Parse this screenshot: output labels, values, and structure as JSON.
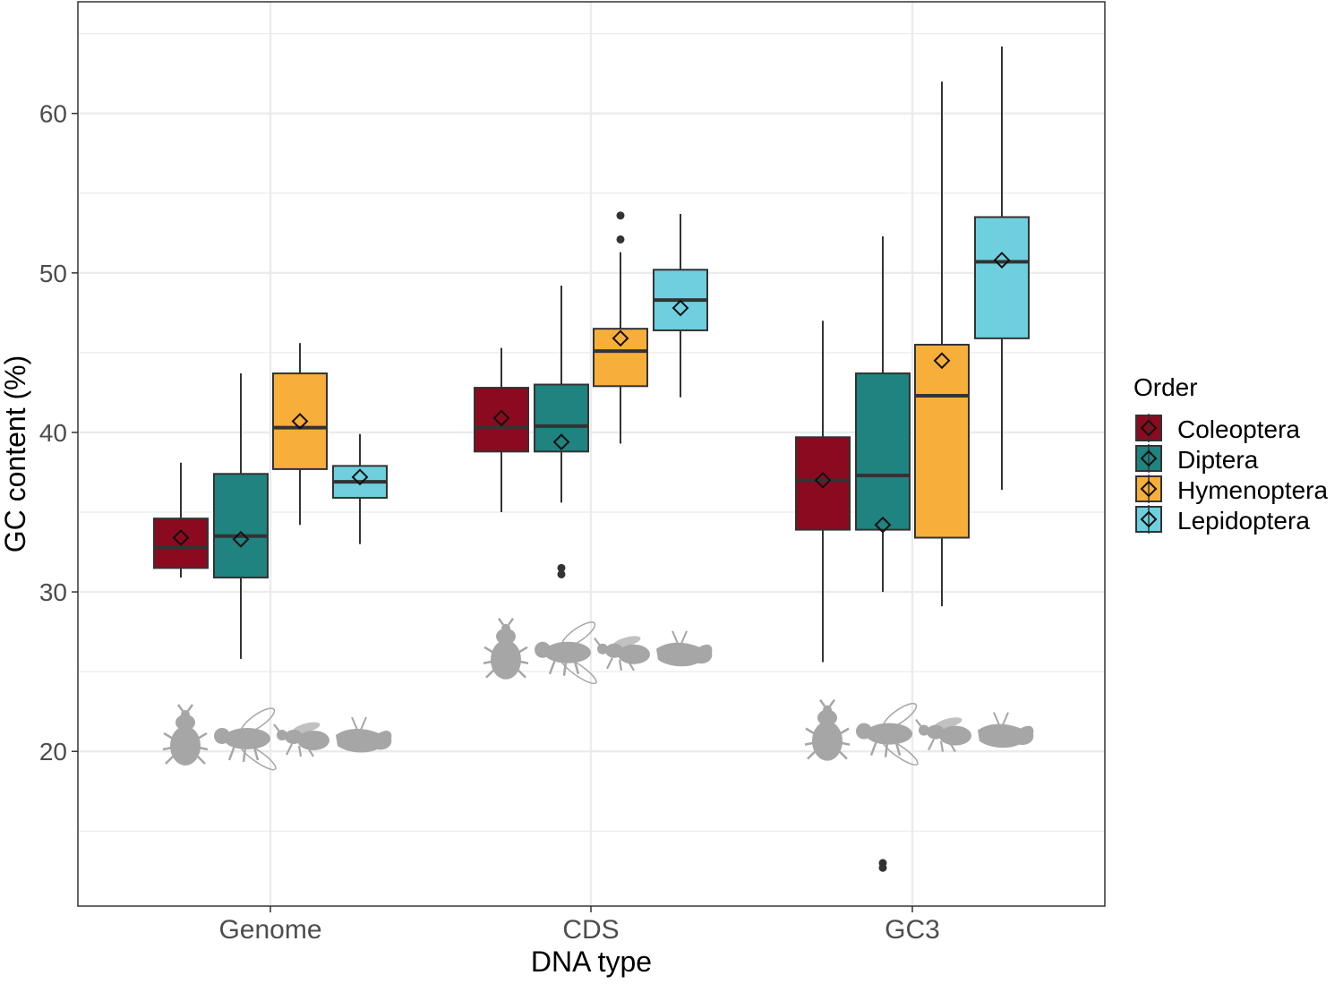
{
  "chart_data": {
    "type": "boxplot",
    "xlabel": "DNA type",
    "ylabel": "GC content (%)",
    "categories": [
      "Genome",
      "CDS",
      "GC3"
    ],
    "ylim": [
      10.3,
      67
    ],
    "yticks": [
      20,
      30,
      40,
      50,
      60
    ],
    "grid": true,
    "legend": {
      "title": "Order",
      "position": "right"
    },
    "colors": {
      "Coleoptera": "#8B0A1F",
      "Diptera": "#1F8380",
      "Hymenoptera": "#F8AE3A",
      "Lepidoptera": "#6ED0DE",
      "box_outline": "#333333",
      "silhouette": "#A6A6A6",
      "grid": "#EBEBEB"
    },
    "series": [
      {
        "name": "Coleoptera",
        "boxes": [
          {
            "category": "Genome",
            "whisker_low": 30.9,
            "q1": 31.5,
            "median": 32.8,
            "q3": 34.6,
            "whisker_high": 38.1,
            "mean": 33.4,
            "outliers": []
          },
          {
            "category": "CDS",
            "whisker_low": 35.0,
            "q1": 38.8,
            "median": 40.3,
            "q3": 42.8,
            "whisker_high": 45.3,
            "mean": 40.9,
            "outliers": []
          },
          {
            "category": "GC3",
            "whisker_low": 25.6,
            "q1": 33.9,
            "median": 37.0,
            "q3": 39.7,
            "whisker_high": 47.0,
            "mean": 37.0,
            "outliers": []
          }
        ]
      },
      {
        "name": "Diptera",
        "boxes": [
          {
            "category": "Genome",
            "whisker_low": 25.8,
            "q1": 30.9,
            "median": 33.5,
            "q3": 37.4,
            "whisker_high": 43.7,
            "mean": 33.3,
            "outliers": []
          },
          {
            "category": "CDS",
            "whisker_low": 35.6,
            "q1": 38.8,
            "median": 40.4,
            "q3": 43.0,
            "whisker_high": 49.2,
            "mean": 39.4,
            "outliers": [
              31.5,
              31.1
            ]
          },
          {
            "category": "GC3",
            "whisker_low": 30.0,
            "q1": 33.9,
            "median": 37.3,
            "q3": 43.7,
            "whisker_high": 52.3,
            "mean": 34.2,
            "outliers": [
              13.0,
              12.7
            ]
          }
        ]
      },
      {
        "name": "Hymenoptera",
        "boxes": [
          {
            "category": "Genome",
            "whisker_low": 34.2,
            "q1": 37.7,
            "median": 40.3,
            "q3": 43.7,
            "whisker_high": 45.6,
            "mean": 40.7,
            "outliers": []
          },
          {
            "category": "CDS",
            "whisker_low": 39.3,
            "q1": 42.9,
            "median": 45.1,
            "q3": 46.5,
            "whisker_high": 51.3,
            "mean": 45.9,
            "outliers": [
              52.1,
              53.6
            ]
          },
          {
            "category": "GC3",
            "whisker_low": 29.1,
            "q1": 33.4,
            "median": 42.3,
            "q3": 45.5,
            "whisker_high": 62.0,
            "mean": 44.5,
            "outliers": []
          }
        ]
      },
      {
        "name": "Lepidoptera",
        "boxes": [
          {
            "category": "Genome",
            "whisker_low": 33.0,
            "q1": 35.9,
            "median": 36.9,
            "q3": 37.9,
            "whisker_high": 39.9,
            "mean": 37.2,
            "outliers": []
          },
          {
            "category": "CDS",
            "whisker_low": 42.2,
            "q1": 46.4,
            "median": 48.3,
            "q3": 50.2,
            "whisker_high": 53.7,
            "mean": 47.8,
            "outliers": []
          },
          {
            "category": "GC3",
            "whisker_low": 36.4,
            "q1": 45.9,
            "median": 50.7,
            "q3": 53.5,
            "whisker_high": 64.2,
            "mean": 50.8,
            "outliers": []
          }
        ]
      }
    ],
    "icons": [
      {
        "category": "Genome",
        "y_center": 20.8,
        "order": [
          "beetle-icon",
          "fly-icon",
          "wasp-icon",
          "moth-icon"
        ]
      },
      {
        "category": "CDS",
        "y_center": 26.2,
        "order": [
          "beetle-icon",
          "fly-icon",
          "wasp-icon",
          "moth-icon"
        ]
      },
      {
        "category": "GC3",
        "y_center": 21.1,
        "order": [
          "beetle-icon",
          "fly-icon",
          "wasp-icon",
          "moth-icon"
        ]
      }
    ]
  }
}
